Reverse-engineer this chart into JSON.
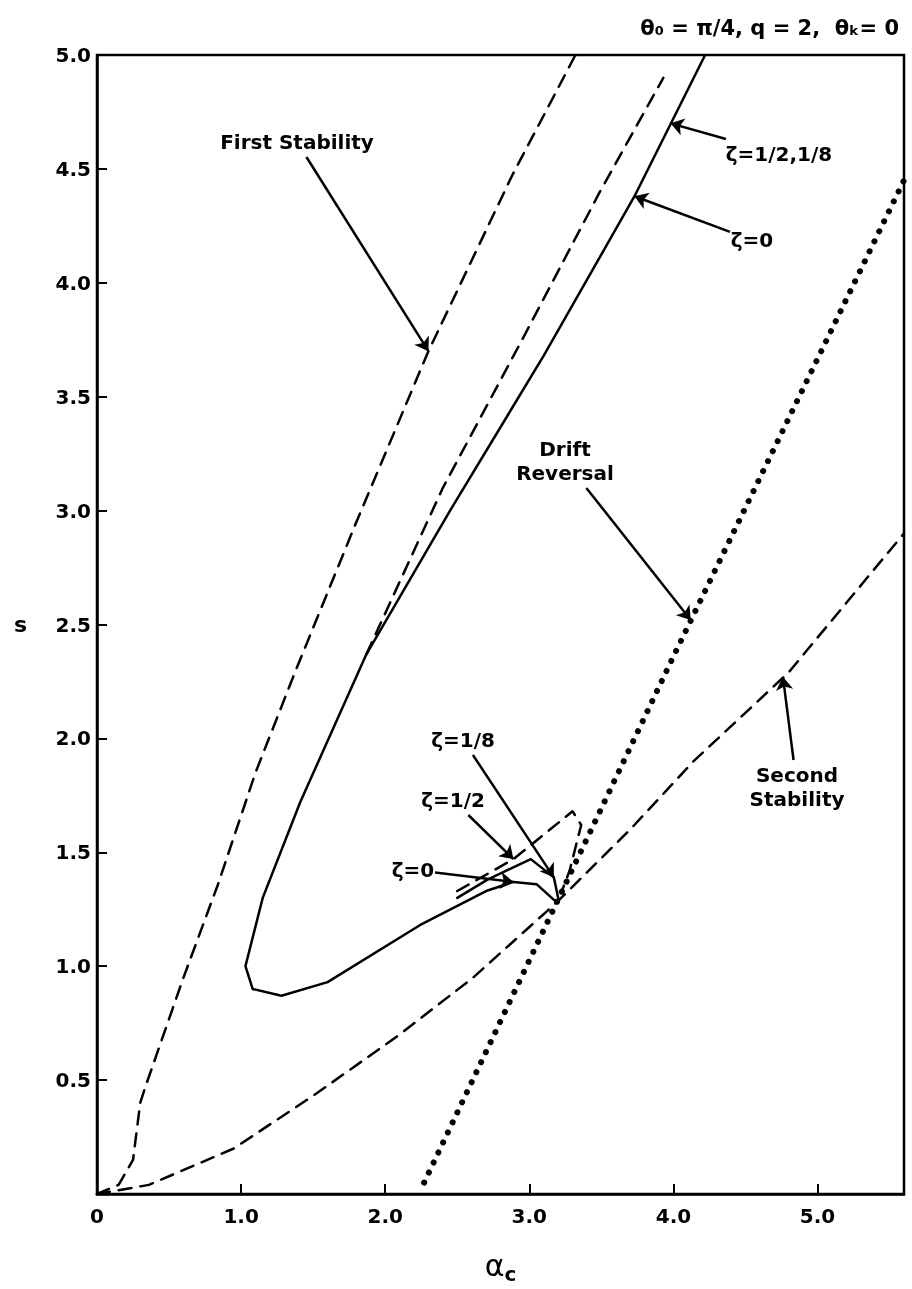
{
  "chart_data": {
    "type": "line",
    "title": "θ₀ = π/4, q = 2,  θₖ= 0",
    "xlabel": "α$_{c}$",
    "ylabel": "s",
    "xlim": [
      0,
      5.6
    ],
    "ylim": [
      0,
      5
    ],
    "xticks": [
      0,
      {
        "value": 1,
        "label": "1.0"
      },
      {
        "value": 2,
        "label": "2.0"
      },
      {
        "value": 3,
        "label": "3.0"
      },
      {
        "value": 4,
        "label": "4.0"
      },
      {
        "value": 5,
        "label": "5.0"
      }
    ],
    "yticks": [
      0.5,
      {
        "value": 1,
        "label": "1.0"
      },
      1.5,
      {
        "value": 2,
        "label": "2.0"
      },
      2.5,
      {
        "value": 3,
        "label": "3.0"
      },
      3.5,
      {
        "value": 4,
        "label": "4.0"
      },
      4.5,
      {
        "value": 5,
        "label": "5.0"
      }
    ],
    "grid": false,
    "series": [
      {
        "color": "#000000",
        "line_style": "dashed",
        "x": [
          0,
          0.15,
          0.25,
          0.3,
          0.33,
          0.6,
          0.84,
          1.1,
          1.38,
          1.8,
          2.3,
          2.88,
          3.32
        ],
        "values": [
          0,
          0.04,
          0.15,
          0.4,
          0.46,
          0.95,
          1.36,
          1.85,
          2.3,
          2.95,
          3.7,
          4.47,
          5.0
        ]
      },
      {
        "color": "#000000",
        "line_style": "dashed",
        "x": [
          0,
          0.36,
          0.95,
          1.52,
          2.1,
          2.61,
          3.19,
          3.7,
          4.14,
          4.8,
          5.6
        ],
        "values": [
          0,
          0.04,
          0.2,
          0.44,
          0.7,
          0.95,
          1.28,
          1.6,
          1.9,
          2.29,
          2.9
        ]
      },
      {
        "color": "#000000",
        "line_style": "dotted",
        "x": [
          2.27,
          3.19,
          4.0,
          5.6
        ],
        "values": [
          0.05,
          1.28,
          2.36,
          4.45
        ]
      },
      {
        "color": "#000000",
        "line_style": "solid",
        "x": [
          4.22,
          3.73,
          3.1,
          2.45,
          1.87,
          1.41,
          1.15,
          1.03,
          1.08,
          1.28,
          1.6,
          2.24,
          2.7,
          2.89,
          3.05,
          3.19
        ],
        "values": [
          5.0,
          4.38,
          3.68,
          3.0,
          2.37,
          1.72,
          1.3,
          1.0,
          0.9,
          0.87,
          0.93,
          1.18,
          1.33,
          1.37,
          1.36,
          1.28
        ]
      },
      {
        "color": "#000000",
        "line_style": "dashed",
        "x": [
          1.87,
          2.4,
          2.95,
          3.49,
          3.93
        ],
        "values": [
          2.37,
          3.1,
          3.75,
          4.4,
          4.9
        ]
      },
      {
        "color": "#000000",
        "line_style": "solid",
        "x": [
          2.5,
          2.71,
          3.01,
          3.17,
          3.2
        ],
        "values": [
          1.3,
          1.38,
          1.47,
          1.39,
          1.3
        ]
      },
      {
        "color": "#000000",
        "line_style": "dashed",
        "x": [
          2.5,
          2.89,
          3.3,
          3.36,
          3.28,
          3.22
        ],
        "values": [
          1.33,
          1.47,
          1.68,
          1.62,
          1.42,
          1.32
        ]
      }
    ],
    "annotations": [
      {
        "text": "First Stability",
        "x": 2.3,
        "y": 3.7
      },
      {
        "text": "ζ=1/2,1/8",
        "x": 3.98,
        "y": 4.7
      },
      {
        "text": "ζ=0",
        "x": 3.73,
        "y": 4.38
      },
      {
        "text": "Drift\nReversal",
        "x": 4.12,
        "y": 2.52
      },
      {
        "text": "Second\nStability",
        "x": 4.76,
        "y": 2.27
      },
      {
        "text": "ζ=1/8",
        "x": 3.17,
        "y": 1.39
      },
      {
        "text": "ζ=1/2",
        "x": 2.89,
        "y": 1.47
      },
      {
        "text": "ζ=0",
        "x": 2.89,
        "y": 1.37
      }
    ]
  }
}
